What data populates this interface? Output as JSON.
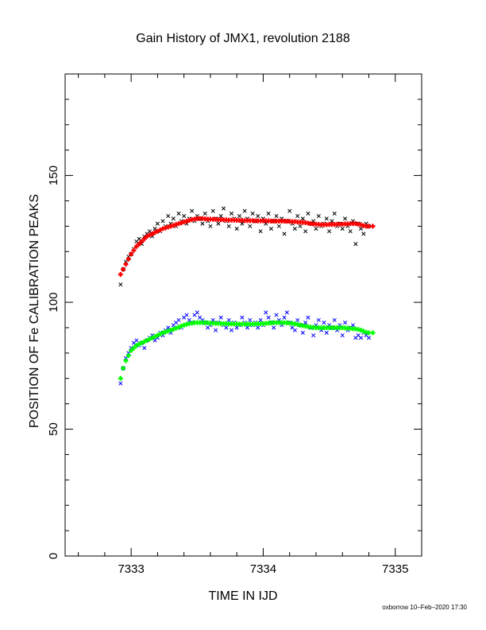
{
  "chart_data": {
    "type": "scatter",
    "title": "Gain History of JMX1, revolution 2188",
    "xlabel": "TIME IN IJD",
    "ylabel": "POSITION OF Fe CALIBRATION PEAKS",
    "xlim": [
      7332.5,
      7335.2
    ],
    "ylim": [
      0,
      190
    ],
    "x_ticks": [
      7333,
      7334,
      7335
    ],
    "y_ticks": [
      0,
      50,
      100,
      150
    ],
    "x_tick_labels": [
      "7333",
      "7334",
      "7335"
    ],
    "y_tick_labels": [
      "0",
      "50",
      "100",
      "150"
    ],
    "grid": false,
    "footer": "oxborrow 10–Feb–2020 17:30",
    "series": [
      {
        "color": "#000000",
        "marker": "x",
        "x": [
          7332.92,
          7332.94,
          7332.96,
          7332.98,
          7333.0,
          7333.02,
          7333.04,
          7333.06,
          7333.08,
          7333.1,
          7333.12,
          7333.14,
          7333.16,
          7333.18,
          7333.2,
          7333.22,
          7333.24,
          7333.26,
          7333.28,
          7333.3,
          7333.32,
          7333.34,
          7333.36,
          7333.38,
          7333.4,
          7333.42,
          7333.44,
          7333.46,
          7333.48,
          7333.5,
          7333.52,
          7333.54,
          7333.56,
          7333.58,
          7333.6,
          7333.62,
          7333.64,
          7333.66,
          7333.68,
          7333.7,
          7333.72,
          7333.74,
          7333.76,
          7333.78,
          7333.8,
          7333.82,
          7333.84,
          7333.86,
          7333.88,
          7333.9,
          7333.92,
          7333.94,
          7333.96,
          7333.98,
          7334.0,
          7334.02,
          7334.04,
          7334.06,
          7334.08,
          7334.1,
          7334.12,
          7334.14,
          7334.16,
          7334.18,
          7334.2,
          7334.22,
          7334.24,
          7334.26,
          7334.28,
          7334.3,
          7334.32,
          7334.34,
          7334.36,
          7334.38,
          7334.4,
          7334.42,
          7334.44,
          7334.46,
          7334.48,
          7334.5,
          7334.52,
          7334.54,
          7334.56,
          7334.58,
          7334.6,
          7334.62,
          7334.64,
          7334.66,
          7334.68,
          7334.7,
          7334.72,
          7334.74,
          7334.76,
          7334.78,
          7334.8
        ],
        "y": [
          107,
          113,
          116,
          118,
          119,
          121,
          124,
          125,
          123,
          126,
          127,
          128,
          126,
          129,
          131,
          128,
          132,
          130,
          134,
          131,
          133,
          130,
          135,
          132,
          134,
          131,
          133,
          136,
          132,
          134,
          133,
          131,
          135,
          132,
          130,
          136,
          133,
          131,
          134,
          137,
          132,
          130,
          135,
          133,
          129,
          134,
          131,
          136,
          133,
          130,
          135,
          132,
          134,
          128,
          133,
          131,
          135,
          129,
          132,
          134,
          130,
          133,
          127,
          132,
          136,
          131,
          129,
          134,
          130,
          133,
          128,
          135,
          131,
          132,
          129,
          134,
          130,
          131,
          133,
          128,
          132,
          135,
          130,
          131,
          129,
          133,
          130,
          128,
          132,
          123,
          131,
          129,
          127,
          131,
          130
        ]
      },
      {
        "color": "#ff0000",
        "marker": "+",
        "x": [
          7332.92,
          7332.94,
          7332.96,
          7332.98,
          7333.0,
          7333.02,
          7333.04,
          7333.06,
          7333.08,
          7333.1,
          7333.12,
          7333.14,
          7333.16,
          7333.18,
          7333.2,
          7333.22,
          7333.24,
          7333.26,
          7333.28,
          7333.3,
          7333.32,
          7333.34,
          7333.36,
          7333.38,
          7333.4,
          7333.42,
          7333.44,
          7333.46,
          7333.48,
          7333.5,
          7333.52,
          7333.54,
          7333.56,
          7333.58,
          7333.6,
          7333.62,
          7333.64,
          7333.66,
          7333.68,
          7333.7,
          7333.72,
          7333.74,
          7333.76,
          7333.78,
          7333.8,
          7333.82,
          7333.84,
          7333.86,
          7333.88,
          7333.9,
          7333.92,
          7333.94,
          7333.96,
          7333.98,
          7334.0,
          7334.02,
          7334.04,
          7334.06,
          7334.08,
          7334.1,
          7334.12,
          7334.14,
          7334.16,
          7334.18,
          7334.2,
          7334.22,
          7334.24,
          7334.26,
          7334.28,
          7334.3,
          7334.32,
          7334.34,
          7334.36,
          7334.38,
          7334.4,
          7334.42,
          7334.44,
          7334.46,
          7334.48,
          7334.5,
          7334.52,
          7334.54,
          7334.56,
          7334.58,
          7334.6,
          7334.62,
          7334.64,
          7334.66,
          7334.68,
          7334.7,
          7334.72,
          7334.74,
          7334.76,
          7334.78,
          7334.8,
          7334.83
        ],
        "y": [
          111,
          113,
          115,
          117,
          119,
          120.5,
          122,
          123,
          124,
          125,
          126,
          126.5,
          127,
          127.5,
          128,
          128.5,
          129,
          129.3,
          129.7,
          130,
          130.3,
          130.7,
          131,
          131.3,
          131.7,
          132,
          132.3,
          132.6,
          132.8,
          133,
          133,
          133,
          132.9,
          132.8,
          132.8,
          132.7,
          132.7,
          132.6,
          132.6,
          132.5,
          132.5,
          132.4,
          132.4,
          132.4,
          132.3,
          132.3,
          132.3,
          132.2,
          132.2,
          132.2,
          132.2,
          132.1,
          132.1,
          132.1,
          132.1,
          132.1,
          132.1,
          132,
          132,
          132,
          132,
          132,
          132,
          131.9,
          131.9,
          131.8,
          131.8,
          131.7,
          131.6,
          131.5,
          131.4,
          131.2,
          131,
          130.9,
          130.8,
          130.7,
          130.6,
          130.6,
          130.6,
          130.7,
          130.7,
          130.7,
          130.8,
          130.8,
          130.8,
          130.9,
          130.9,
          131,
          131,
          131,
          130.8,
          130.6,
          130.2,
          130,
          130,
          130
        ]
      },
      {
        "color": "#0000ff",
        "marker": "x",
        "x": [
          7332.92,
          7332.94,
          7332.96,
          7332.98,
          7333.0,
          7333.02,
          7333.04,
          7333.06,
          7333.08,
          7333.1,
          7333.12,
          7333.14,
          7333.16,
          7333.18,
          7333.2,
          7333.22,
          7333.24,
          7333.26,
          7333.28,
          7333.3,
          7333.32,
          7333.34,
          7333.36,
          7333.38,
          7333.4,
          7333.42,
          7333.44,
          7333.46,
          7333.48,
          7333.5,
          7333.52,
          7333.54,
          7333.56,
          7333.58,
          7333.6,
          7333.62,
          7333.64,
          7333.66,
          7333.68,
          7333.7,
          7333.72,
          7333.74,
          7333.76,
          7333.78,
          7333.8,
          7333.82,
          7333.84,
          7333.86,
          7333.88,
          7333.9,
          7333.92,
          7333.94,
          7333.96,
          7333.98,
          7334.0,
          7334.02,
          7334.04,
          7334.06,
          7334.08,
          7334.1,
          7334.12,
          7334.14,
          7334.16,
          7334.18,
          7334.2,
          7334.22,
          7334.24,
          7334.26,
          7334.28,
          7334.3,
          7334.32,
          7334.34,
          7334.36,
          7334.38,
          7334.4,
          7334.42,
          7334.44,
          7334.46,
          7334.48,
          7334.5,
          7334.52,
          7334.54,
          7334.56,
          7334.58,
          7334.6,
          7334.62,
          7334.64,
          7334.66,
          7334.68,
          7334.7,
          7334.72,
          7334.74,
          7334.76,
          7334.78,
          7334.8
        ],
        "y": [
          68,
          74,
          78,
          80,
          82,
          84,
          85,
          83,
          84,
          82,
          85,
          86,
          87,
          85,
          86,
          88,
          87,
          89,
          90,
          88,
          91,
          92,
          93,
          90,
          94,
          95,
          93,
          92,
          95,
          96,
          94,
          93,
          92,
          90,
          91,
          93,
          89,
          92,
          94,
          91,
          90,
          93,
          89,
          92,
          90,
          91,
          94,
          92,
          90,
          93,
          91,
          92,
          90,
          93,
          91,
          96,
          94,
          92,
          90,
          95,
          93,
          91,
          94,
          96,
          92,
          90,
          89,
          93,
          91,
          88,
          92,
          94,
          90,
          87,
          91,
          93,
          89,
          92,
          88,
          91,
          90,
          93,
          89,
          91,
          87,
          92,
          89,
          90,
          91,
          86,
          87,
          86,
          88,
          87,
          86
        ]
      },
      {
        "color": "#00ff00",
        "marker": "+",
        "x": [
          7332.92,
          7332.94,
          7332.96,
          7332.98,
          7333.0,
          7333.02,
          7333.04,
          7333.06,
          7333.08,
          7333.1,
          7333.12,
          7333.14,
          7333.16,
          7333.18,
          7333.2,
          7333.22,
          7333.24,
          7333.26,
          7333.28,
          7333.3,
          7333.32,
          7333.34,
          7333.36,
          7333.38,
          7333.4,
          7333.42,
          7333.44,
          7333.46,
          7333.48,
          7333.5,
          7333.52,
          7333.54,
          7333.56,
          7333.58,
          7333.6,
          7333.62,
          7333.64,
          7333.66,
          7333.68,
          7333.7,
          7333.72,
          7333.74,
          7333.76,
          7333.78,
          7333.8,
          7333.82,
          7333.84,
          7333.86,
          7333.88,
          7333.9,
          7333.92,
          7333.94,
          7333.96,
          7333.98,
          7334.0,
          7334.02,
          7334.04,
          7334.06,
          7334.08,
          7334.1,
          7334.12,
          7334.14,
          7334.16,
          7334.18,
          7334.2,
          7334.22,
          7334.24,
          7334.26,
          7334.28,
          7334.3,
          7334.32,
          7334.34,
          7334.36,
          7334.38,
          7334.4,
          7334.42,
          7334.44,
          7334.46,
          7334.48,
          7334.5,
          7334.52,
          7334.54,
          7334.56,
          7334.58,
          7334.6,
          7334.62,
          7334.64,
          7334.66,
          7334.68,
          7334.7,
          7334.72,
          7334.74,
          7334.76,
          7334.78,
          7334.8,
          7334.83
        ],
        "y": [
          70,
          74,
          77,
          79,
          81,
          82,
          83,
          83.5,
          84,
          84.5,
          85,
          85.5,
          86,
          86.5,
          87,
          87.5,
          88,
          88.3,
          88.7,
          89,
          89.4,
          89.8,
          90.2,
          90.6,
          91,
          91.3,
          91.6,
          91.8,
          92,
          92,
          92,
          92,
          92,
          91.9,
          91.8,
          91.8,
          91.7,
          91.7,
          91.6,
          91.6,
          91.6,
          91.5,
          91.5,
          91.5,
          91.5,
          91.4,
          91.4,
          91.4,
          91.4,
          91.4,
          91.4,
          91.5,
          91.5,
          91.6,
          91.6,
          91.7,
          91.8,
          91.9,
          92,
          92,
          92,
          92,
          92,
          91.9,
          91.8,
          91.7,
          91.5,
          91.3,
          91,
          90.8,
          90.6,
          90.4,
          90.2,
          90.1,
          90,
          90,
          90,
          90,
          90,
          90,
          90,
          90,
          90,
          90,
          90,
          89.9,
          89.8,
          89.7,
          89.6,
          89.5,
          89.3,
          89,
          88.6,
          88.2,
          88,
          88
        ]
      }
    ]
  }
}
